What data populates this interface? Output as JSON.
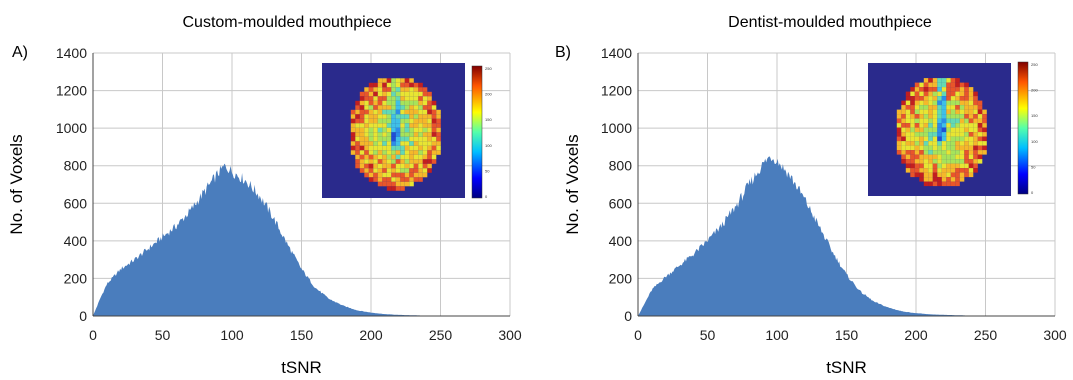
{
  "chart_data": [
    {
      "type": "area",
      "panel": "A)",
      "title": "Custom-moulded mouthpiece",
      "xlabel": "tSNR",
      "ylabel": "No. of Voxels",
      "xlim": [
        0,
        300
      ],
      "ylim": [
        0,
        1400
      ],
      "xticks": [
        "0",
        "50",
        "100",
        "150",
        "200",
        "250",
        "300"
      ],
      "yticks": [
        "0",
        "200",
        "400",
        "600",
        "800",
        "1000",
        "1200",
        "1400"
      ],
      "grid": true,
      "color": "#4a7dbd",
      "x": [
        0,
        5,
        10,
        20,
        30,
        40,
        50,
        60,
        70,
        80,
        90,
        95,
        100,
        110,
        120,
        130,
        140,
        150,
        160,
        170,
        180,
        190,
        200,
        210,
        220,
        230,
        240,
        250,
        260,
        300
      ],
      "values": [
        0,
        90,
        170,
        250,
        300,
        360,
        420,
        480,
        560,
        660,
        760,
        800,
        770,
        720,
        640,
        520,
        380,
        250,
        150,
        90,
        55,
        30,
        18,
        10,
        6,
        4,
        2,
        1,
        0,
        0
      ],
      "inset": {
        "description": "axial tSNR map",
        "colorbar_ticks": [
          "250",
          "200",
          "150",
          "100",
          "50",
          "0"
        ]
      }
    },
    {
      "type": "area",
      "panel": "B)",
      "title": "Dentist-moulded mouthpiece",
      "xlabel": "tSNR",
      "ylabel": "No. of Voxels",
      "xlim": [
        0,
        300
      ],
      "ylim": [
        0,
        1400
      ],
      "xticks": [
        "0",
        "50",
        "100",
        "150",
        "200",
        "250",
        "300"
      ],
      "yticks": [
        "0",
        "200",
        "400",
        "600",
        "800",
        "1000",
        "1200",
        "1400"
      ],
      "grid": true,
      "color": "#4a7dbd",
      "x": [
        0,
        5,
        10,
        20,
        30,
        40,
        50,
        60,
        70,
        80,
        90,
        95,
        100,
        110,
        120,
        130,
        140,
        150,
        160,
        170,
        180,
        190,
        200,
        210,
        220,
        230,
        240,
        250,
        260,
        300
      ],
      "values": [
        0,
        70,
        140,
        210,
        270,
        330,
        400,
        480,
        580,
        700,
        810,
        850,
        830,
        740,
        620,
        480,
        340,
        220,
        130,
        75,
        45,
        25,
        15,
        9,
        6,
        4,
        2,
        1,
        0,
        0
      ],
      "inset": {
        "description": "axial tSNR map",
        "colorbar_ticks": [
          "250",
          "200",
          "150",
          "100",
          "50",
          "0"
        ]
      }
    }
  ]
}
